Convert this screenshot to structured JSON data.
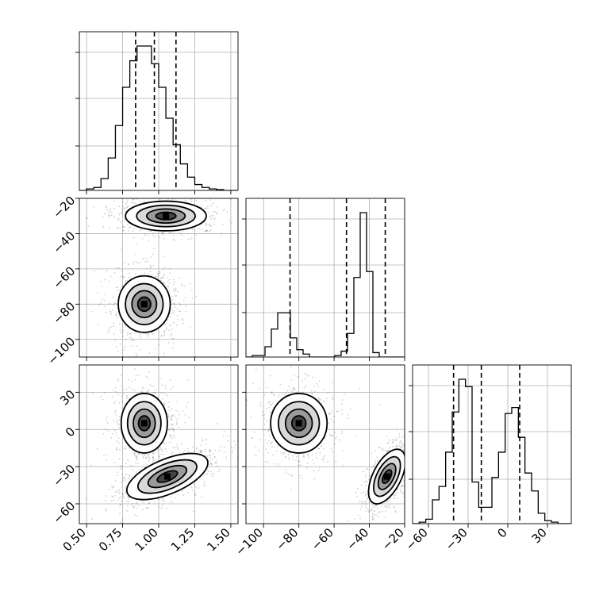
{
  "chart_data": [
    {
      "type": "histogram",
      "panel": "p1-hist",
      "x_ticks": [
        "0.50",
        "0.75",
        "1.00",
        "1.25",
        "1.50"
      ],
      "xlim": [
        0.45,
        1.55
      ],
      "ylim": [
        0,
        1
      ],
      "grid": true,
      "quantile_lines": [
        0.84,
        0.97,
        1.12
      ],
      "bins_start": 0.45,
      "bin_width": 0.05,
      "counts": [
        0,
        0.01,
        0.02,
        0.08,
        0.22,
        0.44,
        0.7,
        0.88,
        0.98,
        0.98,
        0.86,
        0.7,
        0.49,
        0.31,
        0.18,
        0.09,
        0.04,
        0.02,
        0.01,
        0.005,
        0,
        0
      ]
    },
    {
      "type": "histogram",
      "panel": "p2-hist",
      "x_ticks": [
        "−100",
        "−80",
        "−60",
        "−40",
        "−20"
      ],
      "xlim": [
        -110,
        -20
      ],
      "ylim": [
        0,
        1
      ],
      "grid": true,
      "quantile_lines": [
        -85,
        -53,
        -31
      ],
      "bins_start": -110,
      "bin_width": 3.6,
      "counts": [
        0,
        0.01,
        0.01,
        0.07,
        0.19,
        0.3,
        0.3,
        0.13,
        0.05,
        0.02,
        0,
        0,
        0,
        0,
        0.01,
        0.04,
        0.16,
        0.54,
        0.98,
        0.58,
        0.03,
        0,
        0,
        0,
        0
      ]
    },
    {
      "type": "histogram",
      "panel": "p3-hist",
      "x_ticks": [
        "−60",
        "−30",
        "0",
        "30"
      ],
      "xlim": [
        -72,
        48
      ],
      "ylim": [
        0,
        1
      ],
      "grid": true,
      "quantile_lines": [
        -41,
        -20,
        9
      ],
      "bins_start": -72,
      "bin_width": 5,
      "counts": [
        0,
        0.01,
        0.03,
        0.16,
        0.25,
        0.48,
        0.75,
        0.97,
        0.92,
        0.28,
        0.11,
        0.11,
        0.31,
        0.48,
        0.74,
        0.78,
        0.58,
        0.34,
        0.22,
        0.07,
        0.02,
        0.01,
        0,
        0
      ]
    },
    {
      "type": "contour_density",
      "panel": "p2-vs-p1",
      "x_ticks": [
        "0.50",
        "0.75",
        "1.00",
        "1.25",
        "1.50"
      ],
      "y_ticks": [
        "−20",
        "−40",
        "−60",
        "−80",
        "−100"
      ],
      "xlim": [
        0.45,
        1.55
      ],
      "ylim": [
        -110,
        -20
      ],
      "grid": true,
      "modes": [
        {
          "x": 1.05,
          "y": -30,
          "sx": 0.14,
          "sy": 4.2
        },
        {
          "x": 0.9,
          "y": -80,
          "sx": 0.09,
          "sy": 8
        }
      ]
    },
    {
      "type": "contour_density",
      "panel": "p3-vs-p1",
      "x_ticks": [
        "0.50",
        "0.75",
        "1.00",
        "1.25",
        "1.50"
      ],
      "y_ticks": [
        "30",
        "0",
        "−30",
        "−60"
      ],
      "xlim": [
        0.45,
        1.55
      ],
      "ylim": [
        -76,
        52
      ],
      "grid": true,
      "modes": [
        {
          "x": 0.9,
          "y": 5,
          "sx": 0.08,
          "sy": 12
        },
        {
          "x": 1.06,
          "y": -38,
          "sx": 0.15,
          "sy": 7,
          "tilt": -0.5
        }
      ]
    },
    {
      "type": "contour_density",
      "panel": "p3-vs-p2",
      "x_ticks": [
        "−100",
        "−80",
        "−60",
        "−40",
        "−20"
      ],
      "y_ticks": [
        "30",
        "0",
        "−30",
        "−60"
      ],
      "xlim": [
        -110,
        -20
      ],
      "ylim": [
        -76,
        52
      ],
      "grid": true,
      "modes": [
        {
          "x": -80,
          "y": 5,
          "sx": 8,
          "sy": 12
        },
        {
          "x": -30,
          "y": -38,
          "sx": 4,
          "sy": 12,
          "tilt": 0.6
        }
      ]
    }
  ]
}
